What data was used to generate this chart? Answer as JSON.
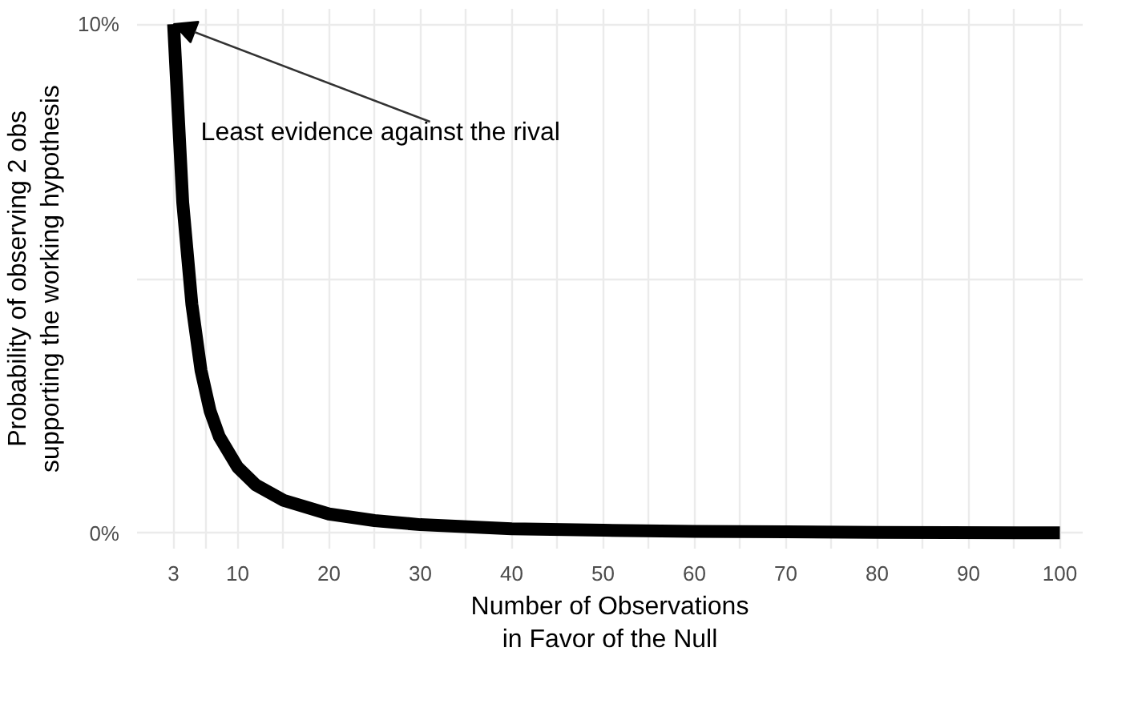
{
  "chart_data": {
    "type": "line",
    "xlabel": "Number of Observations\nin Favor of the Null",
    "ylabel": "Probability of observing 2 obs\nsupporting the working hypothesis",
    "x": [
      3,
      4,
      5,
      6,
      7,
      8,
      10,
      12,
      15,
      20,
      25,
      30,
      40,
      50,
      60,
      70,
      80,
      100
    ],
    "series": [
      {
        "color": "#000000",
        "values": [
          10,
          6.5,
          4.5,
          3.2,
          2.4,
          1.9,
          1.3,
          0.95,
          0.65,
          0.38,
          0.25,
          0.17,
          0.09,
          0.06,
          0.04,
          0.03,
          0.02,
          0.01
        ]
      }
    ],
    "xlim": [
      -1,
      102.5
    ],
    "ylim": [
      -0.3,
      10.3
    ],
    "xticks": [
      3,
      {
        "value": 6.5,
        "label": null
      },
      10,
      {
        "value": 15,
        "label": null
      },
      20,
      {
        "value": 25,
        "label": null
      },
      30,
      {
        "value": 35,
        "label": null
      },
      40,
      {
        "value": 45,
        "label": null
      },
      50,
      {
        "value": 55,
        "label": null
      },
      60,
      {
        "value": 65,
        "label": null
      },
      70,
      {
        "value": 75,
        "label": null
      },
      80,
      {
        "value": 85,
        "label": null
      },
      90,
      {
        "value": 95,
        "label": null
      },
      100
    ],
    "yticks": [
      {
        "value": 0,
        "label": "0%"
      },
      {
        "value": 5,
        "label": null
      },
      {
        "value": 10,
        "label": "10%"
      }
    ],
    "grid": true,
    "marker": "none",
    "line_style": "solid",
    "annotations": [
      {
        "text": "Least evidence against the rival",
        "x": 3,
        "y": 10
      }
    ]
  }
}
